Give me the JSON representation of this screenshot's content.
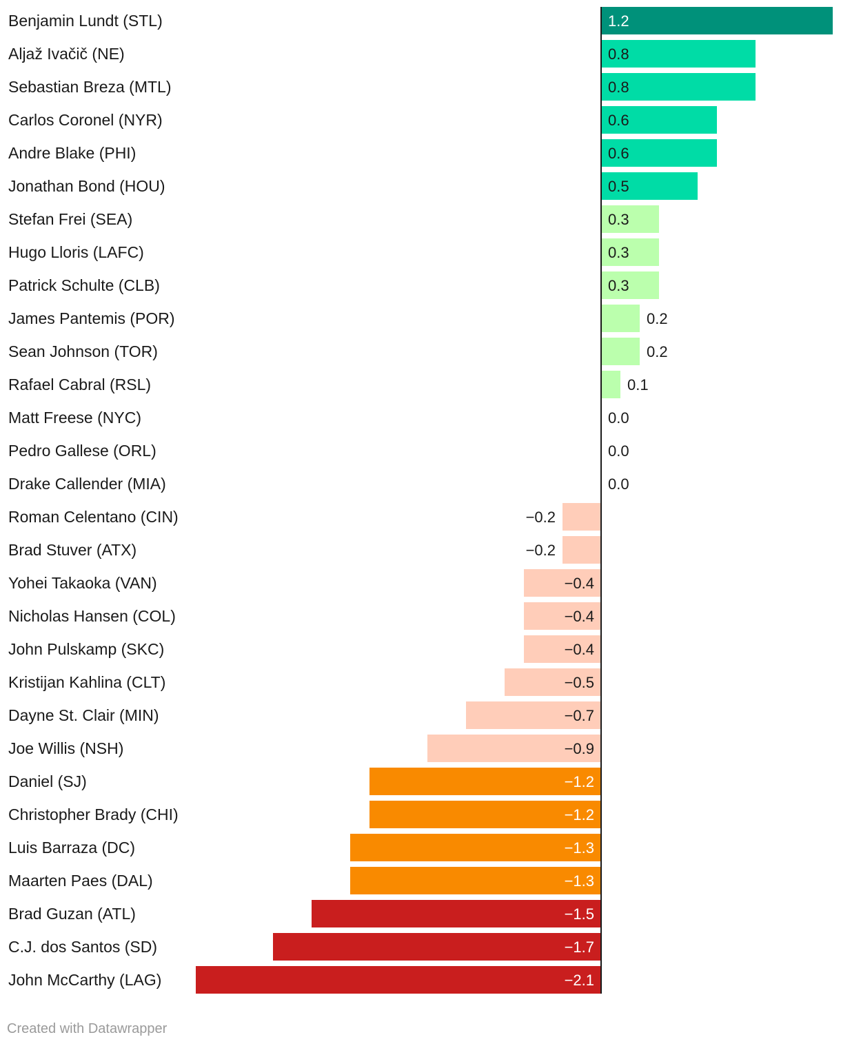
{
  "chart_data": {
    "type": "bar",
    "orientation": "horizontal",
    "categories": [
      "Benjamin Lundt (STL)",
      "Aljaž Ivačič (NE)",
      "Sebastian Breza (MTL)",
      "Carlos Coronel (NYR)",
      "Andre Blake (PHI)",
      "Jonathan Bond (HOU)",
      "Stefan Frei (SEA)",
      "Hugo Lloris (LAFC)",
      "Patrick Schulte (CLB)",
      "James Pantemis (POR)",
      "Sean Johnson (TOR)",
      "Rafael Cabral (RSL)",
      "Matt Freese (NYC)",
      "Pedro Gallese (ORL)",
      "Drake Callender (MIA)",
      "Roman Celentano (CIN)",
      "Brad Stuver (ATX)",
      "Yohei Takaoka (VAN)",
      "Nicholas Hansen (COL)",
      "John Pulskamp (SKC)",
      "Kristijan Kahlina (CLT)",
      "Dayne St. Clair (MIN)",
      "Joe Willis (NSH)",
      "Daniel (SJ)",
      "Christopher Brady (CHI)",
      "Luis Barraza (DC)",
      "Maarten Paes (DAL)",
      "Brad Guzan (ATL)",
      "C.J. dos Santos (SD)",
      "John McCarthy (LAG)"
    ],
    "values": [
      1.2,
      0.8,
      0.8,
      0.6,
      0.6,
      0.5,
      0.3,
      0.3,
      0.3,
      0.2,
      0.2,
      0.1,
      0.0,
      0.0,
      0.0,
      -0.2,
      -0.2,
      -0.4,
      -0.4,
      -0.4,
      -0.5,
      -0.7,
      -0.9,
      -1.2,
      -1.2,
      -1.3,
      -1.3,
      -1.5,
      -1.7,
      -2.1
    ],
    "value_labels": [
      "1.2",
      "0.8",
      "0.8",
      "0.6",
      "0.6",
      "0.5",
      "0.3",
      "0.3",
      "0.3",
      "0.2",
      "0.2",
      "0.1",
      "0.0",
      "0.0",
      "0.0",
      "−0.2",
      "−0.2",
      "−0.4",
      "−0.4",
      "−0.4",
      "−0.5",
      "−0.7",
      "−0.9",
      "−1.2",
      "−1.2",
      "−1.3",
      "−1.3",
      "−1.5",
      "−1.7",
      "−2.1"
    ],
    "xlim": [
      -2.1,
      1.2
    ],
    "title": "",
    "xlabel": "",
    "ylabel": "",
    "grid": false,
    "legend": "none",
    "color_bins": [
      {
        "min": 1.0,
        "max": 9.9,
        "color": "#00917a",
        "label_color": "#ffffff"
      },
      {
        "min": 0.45,
        "max": 0.99,
        "color": "#00dca6",
        "label_color": "#1a1a1a"
      },
      {
        "min": 0.05,
        "max": 0.44,
        "color": "#bbffad",
        "label_color": "#1a1a1a"
      },
      {
        "min": -0.99,
        "max": -0.05,
        "color": "#ffcdb9",
        "label_color": "#1a1a1a"
      },
      {
        "min": -1.45,
        "max": -1.0,
        "color": "#f98a00",
        "label_color": "#ffffff"
      },
      {
        "min": -9.9,
        "max": -1.46,
        "color": "#c91e1e",
        "label_color": "#ffffff"
      }
    ],
    "zero_line_color": "#1a1a1a"
  },
  "footer": {
    "credit": "Created with Datawrapper"
  }
}
